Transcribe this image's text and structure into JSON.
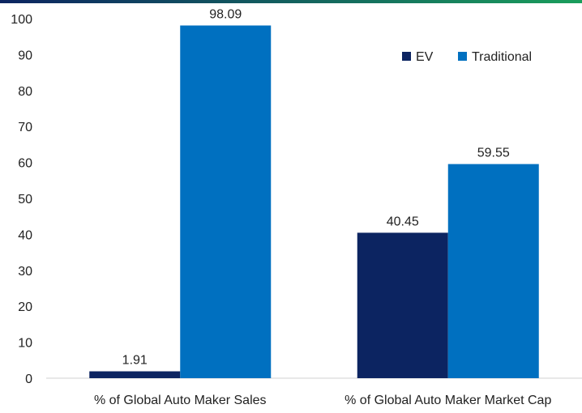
{
  "chart_data": {
    "type": "bar",
    "categories": [
      "% of Global Auto Maker Sales",
      "% of Global Auto Maker Market Cap"
    ],
    "series": [
      {
        "name": "EV",
        "values": [
          1.91,
          40.45
        ],
        "color": "#0c2461"
      },
      {
        "name": "Traditional",
        "values": [
          98.09,
          59.55
        ],
        "color": "#0070c0"
      }
    ],
    "ylim": [
      0,
      100
    ],
    "yticks": [
      0,
      10,
      20,
      30,
      40,
      50,
      60,
      70,
      80,
      90,
      100
    ],
    "grid": false,
    "legend_position": "top-right",
    "top_band_colors": [
      "#0c2461",
      "#1a9e5c"
    ]
  }
}
